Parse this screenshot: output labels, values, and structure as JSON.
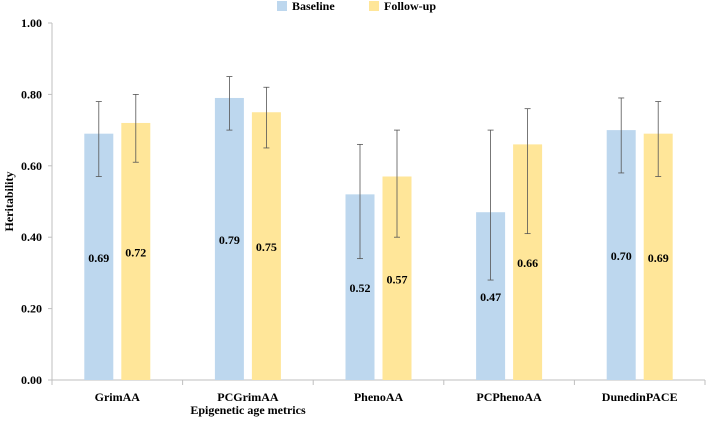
{
  "chart_data": {
    "type": "bar",
    "title": "",
    "xlabel": "Epigenetic age metrics",
    "ylabel": "Heritability",
    "ylim": [
      0,
      1.0
    ],
    "yticks": [
      "0.00",
      "0.20",
      "0.40",
      "0.60",
      "0.80",
      "1.00"
    ],
    "categories": [
      "GrimAA",
      "PCGrimAA",
      "PhenoAA",
      "PCPhenoAA",
      "DunedinPACE"
    ],
    "series": [
      {
        "name": "Baseline",
        "color": "#bdd7ee",
        "values": [
          0.69,
          0.79,
          0.52,
          0.47,
          0.7
        ],
        "labels": [
          "0.69",
          "0.79",
          "0.52",
          "0.47",
          "0.70"
        ],
        "ci_low": [
          0.57,
          0.7,
          0.34,
          0.28,
          0.58
        ],
        "ci_high": [
          0.78,
          0.85,
          0.66,
          0.7,
          0.79
        ]
      },
      {
        "name": "Follow-up",
        "color": "#ffe699",
        "values": [
          0.72,
          0.75,
          0.57,
          0.66,
          0.69
        ],
        "labels": [
          "0.72",
          "0.75",
          "0.57",
          "0.66",
          "0.69"
        ],
        "ci_low": [
          0.61,
          0.65,
          0.4,
          0.41,
          0.57
        ],
        "ci_high": [
          0.8,
          0.82,
          0.7,
          0.76,
          0.78
        ]
      }
    ],
    "legend": "top-center",
    "grid": false
  }
}
